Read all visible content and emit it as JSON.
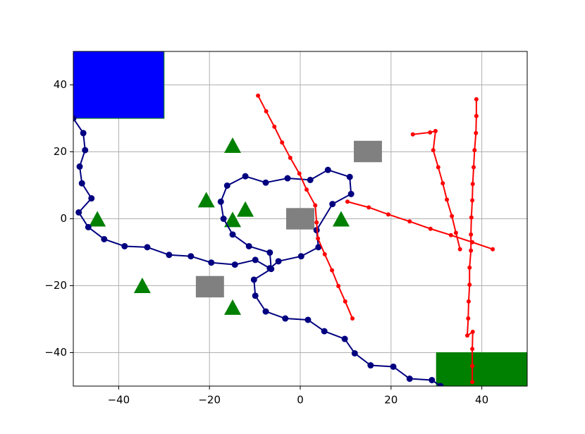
{
  "chart_data": {
    "type": "line",
    "xlim": [
      -50,
      50
    ],
    "ylim": [
      -50,
      50
    ],
    "xticks": [
      {
        "value": -40,
        "label": "−40"
      },
      {
        "value": -20,
        "label": "−20"
      },
      0,
      20,
      40
    ],
    "yticks": [
      {
        "value": -40,
        "label": "−40"
      },
      {
        "value": -20,
        "label": "−20"
      },
      0,
      20,
      40
    ],
    "grid": true,
    "regions": [
      {
        "color": "#0000ff",
        "x": [
          -50,
          -30
        ],
        "y": [
          30,
          50
        ]
      },
      {
        "color": "#008000",
        "x": [
          30,
          50
        ],
        "y": [
          -50,
          -40
        ]
      }
    ],
    "obstacles": {
      "color": "#808080",
      "items": [
        {
          "x": [
            -3.1,
            3.1
          ],
          "y": [
            -3.2,
            3.2
          ]
        },
        {
          "x": [
            11.8,
            18
          ],
          "y": [
            16.9,
            23.3
          ]
        },
        {
          "x": [
            -23,
            -16.8
          ],
          "y": [
            -23.5,
            -17.1
          ]
        }
      ]
    },
    "markers": {
      "color": "#008000",
      "x": [
        -14.9,
        -20.7,
        -12.1,
        -14.9,
        -44.7,
        9,
        -34.8,
        -14.9
      ],
      "y": [
        21.8,
        5.5,
        2.7,
        -0.4,
        -0.2,
        -0.2,
        -20.1,
        -26.6
      ]
    },
    "series": [
      {
        "color": "#000080",
        "x": [
          -50,
          -47.8,
          -47.4,
          -48.6,
          -48.1,
          -46,
          -48.8,
          -46.7,
          -43.2,
          -38.7,
          -33.7,
          -28.9,
          -24.1,
          -19.6,
          -14.4,
          -9.9,
          -6.7,
          -4.8,
          0.2,
          4,
          3.6,
          7.1,
          11.2,
          10.9,
          6.1,
          2.2,
          -2.8,
          -7.6,
          -12.1,
          -16.1,
          -17.5,
          -16.9,
          -14.9,
          -11.3,
          -6.7,
          -6.4,
          -10.2,
          -9.9,
          -7.6,
          -3.3,
          1.7,
          5.3,
          9.8,
          12,
          15.5,
          20.5,
          24.1,
          29,
          30.9
        ],
        "y": [
          30,
          25.6,
          20.5,
          15.6,
          10.6,
          6.1,
          1.9,
          -2.5,
          -6.1,
          -8.2,
          -8.5,
          -10.8,
          -11.2,
          -13.1,
          -13.7,
          -12.3,
          -14.8,
          -12.7,
          -11.2,
          -8.5,
          -3.4,
          4.4,
          7.4,
          12.5,
          14.6,
          11.6,
          12.1,
          10.8,
          12.7,
          9.9,
          5.1,
          0,
          -4.7,
          -8.2,
          -10.1,
          -15,
          -18.2,
          -23,
          -27.7,
          -29.8,
          -30.2,
          -33.6,
          -35.9,
          -40.2,
          -43.8,
          -44.2,
          -47.8,
          -48.2,
          -50
        ]
      },
      {
        "color": "#ff0000",
        "x": [
          -9.3,
          -7.5,
          -5.7,
          -4,
          -2.2,
          -0.2,
          1.4,
          3.3,
          3.6,
          3.9,
          5.4,
          7,
          8.4,
          9.9,
          11.5
        ],
        "y": [
          36.8,
          32.1,
          27.5,
          22.8,
          18.2,
          13.5,
          8.7,
          4,
          -1.1,
          -5.9,
          -10.6,
          -15.4,
          -20.1,
          -24.7,
          -29.8
        ]
      },
      {
        "color": "#ff0000",
        "x": [
          24.8,
          28.6,
          29.8,
          29.3,
          30.4,
          31.4,
          32.3,
          33.4,
          34.3,
          35.2
        ],
        "y": [
          25.2,
          25.8,
          26.2,
          20.5,
          15.4,
          10.6,
          5.7,
          0.8,
          -4.2,
          -9.1
        ]
      },
      {
        "color": "#ff0000",
        "x": [
          10.4,
          15.1,
          19.4,
          24.1,
          28.7,
          33.2,
          37.9,
          42.4
        ],
        "y": [
          5.1,
          3.4,
          1.3,
          -0.8,
          -3,
          -4.9,
          -7,
          -9.1
        ]
      },
      {
        "color": "#ff0000",
        "x": [
          38.8,
          38.8,
          38.7,
          38.4,
          38.2,
          38,
          37.9,
          37.7,
          37.6,
          37.6,
          37.3,
          37.3,
          37.1,
          37,
          36.8,
          38,
          37.9,
          37.9,
          37.9
        ],
        "y": [
          35.7,
          30.7,
          25.6,
          20.5,
          15.4,
          10.4,
          5.5,
          0.4,
          -4.7,
          -9.5,
          -14.6,
          -19.7,
          -24.7,
          -29.8,
          -34.9,
          -33.8,
          -38.9,
          -44,
          -48.8
        ]
      }
    ]
  }
}
